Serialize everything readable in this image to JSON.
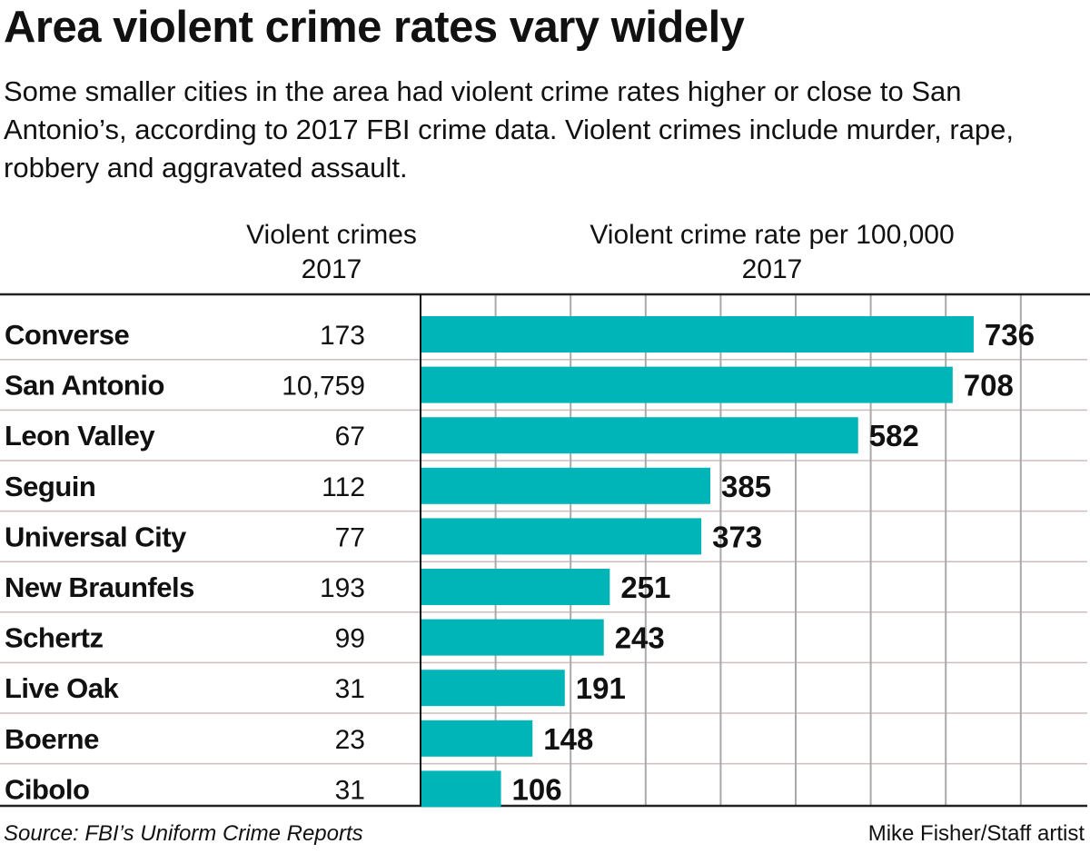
{
  "title": "Area violent crime rates vary widely",
  "subtitle": "Some smaller cities in the area had violent crime rates higher or close to San Antonio’s, according to 2017 FBI crime data. Violent crimes include murder, rape, robbery and aggravated assault.",
  "columns": {
    "count_header": [
      "Violent crimes",
      "2017"
    ],
    "rate_header": [
      "Violent crime rate per 100,000",
      "2017"
    ]
  },
  "source": "Source: FBI’s Uniform Crime Reports",
  "credit": "Mike Fisher/Staff artist",
  "colors": {
    "bar": "#00b5b8",
    "grid": "#a9a9a9",
    "row_rule": "#cdbdbd",
    "text": "#111111"
  },
  "chart_data": {
    "type": "bar",
    "orientation": "horizontal",
    "categories": [
      "Converse",
      "San Antonio",
      "Leon Valley",
      "Seguin",
      "Universal City",
      "New Braunfels",
      "Schertz",
      "Live Oak",
      "Boerne",
      "Cibolo"
    ],
    "violent_crimes": [
      "173",
      "10,759",
      "67",
      "112",
      "77",
      "193",
      "99",
      "31",
      "23",
      "31"
    ],
    "values": [
      736,
      708,
      582,
      385,
      373,
      251,
      243,
      191,
      148,
      106
    ],
    "xlim": [
      0,
      900
    ],
    "grid_step": 100,
    "grid": true
  }
}
